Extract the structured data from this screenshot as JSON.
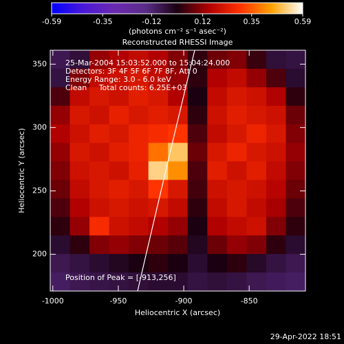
{
  "chart_data": {
    "type": "heatmap",
    "title": "Reconstructed RHESSI Image",
    "colorbar_label": "(photons cm⁻² s⁻¹ asec⁻²)",
    "clim": [
      -0.59,
      0.59
    ],
    "cticks": [
      -0.59,
      -0.35,
      -0.12,
      0.12,
      0.35,
      0.59
    ],
    "colormap": [
      "#0000ff",
      "#4a18d8",
      "#6a2ab0",
      "#5a2c88",
      "#1a0010",
      "#b00000",
      "#ff3000",
      "#ffa000",
      "#ffffff"
    ],
    "xlabel": "Heliocentric X (arcsec)",
    "ylabel": "Heliocentric Y (arcsec)",
    "xlim": [
      -1002,
      -807
    ],
    "ylim": [
      171,
      361
    ],
    "xticks": [
      -1000,
      -950,
      -900,
      -850
    ],
    "yticks": [
      200,
      250,
      300,
      350
    ],
    "info": [
      "25-Mar-2004 15:03:52.000 to 15:04:24.000",
      "Detectors: 3F 4F 5F 6F 7F 8F, Att 0",
      "Energy Range: 3.0 - 6.0 keV",
      "Clean     Total counts: 6.25E+03"
    ],
    "peak_note": "Position of Peak = [-913,256]",
    "timestamp": "29-Apr-2022 18:51",
    "z": [
      [
        -0.08,
        -0.05,
        0.12,
        0.15,
        0.18,
        0.15,
        0.1,
        0.02,
        0.08,
        0.1,
        0.03,
        -0.05,
        -0.06
      ],
      [
        -0.06,
        0.1,
        0.18,
        0.2,
        0.22,
        0.18,
        0.12,
        0.02,
        0.15,
        0.18,
        0.12,
        0.05,
        -0.04
      ],
      [
        0.05,
        0.18,
        0.22,
        0.2,
        0.24,
        0.22,
        0.15,
        0.0,
        0.18,
        0.22,
        0.2,
        0.15,
        0.02
      ],
      [
        0.12,
        0.22,
        0.2,
        0.25,
        0.22,
        0.24,
        0.22,
        0.02,
        0.2,
        0.24,
        0.22,
        0.2,
        0.08
      ],
      [
        0.15,
        0.2,
        0.24,
        0.22,
        0.26,
        0.28,
        0.3,
        0.05,
        0.18,
        0.22,
        0.26,
        0.22,
        0.1
      ],
      [
        0.12,
        0.22,
        0.2,
        0.24,
        0.26,
        0.38,
        0.5,
        0.08,
        0.22,
        0.26,
        0.22,
        0.2,
        0.12
      ],
      [
        0.1,
        0.2,
        0.22,
        0.2,
        0.25,
        0.52,
        0.42,
        0.05,
        0.24,
        0.2,
        0.24,
        0.18,
        0.1
      ],
      [
        0.08,
        0.18,
        0.22,
        0.24,
        0.22,
        0.3,
        0.22,
        0.04,
        0.2,
        0.22,
        0.2,
        0.16,
        0.08
      ],
      [
        0.05,
        0.15,
        0.2,
        0.22,
        0.2,
        0.22,
        0.18,
        0.02,
        0.18,
        0.22,
        0.18,
        0.14,
        0.05
      ],
      [
        0.02,
        0.12,
        0.28,
        0.2,
        0.18,
        0.15,
        0.12,
        0.0,
        0.15,
        0.18,
        0.2,
        0.1,
        0.02
      ],
      [
        -0.04,
        0.02,
        0.1,
        0.12,
        0.1,
        0.08,
        0.06,
        -0.02,
        0.08,
        0.12,
        0.1,
        0.02,
        -0.04
      ],
      [
        -0.08,
        -0.06,
        -0.04,
        -0.02,
        0.0,
        0.02,
        0.0,
        -0.04,
        0.0,
        0.02,
        -0.03,
        -0.06,
        -0.08
      ],
      [
        -0.1,
        -0.08,
        -0.07,
        -0.06,
        -0.05,
        -0.04,
        -0.04,
        -0.06,
        -0.05,
        -0.06,
        -0.08,
        -0.09,
        -0.1
      ]
    ]
  }
}
